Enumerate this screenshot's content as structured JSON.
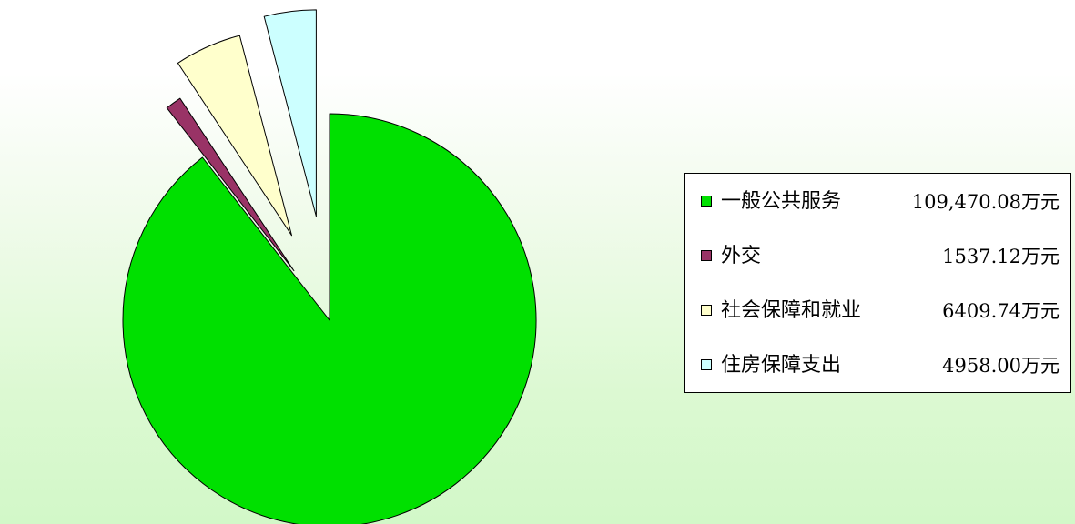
{
  "chart_data": {
    "type": "pie",
    "legend_position": "right",
    "slices": [
      {
        "label": "一般公共服务",
        "value": 109470.08,
        "value_label": "109,470.08万元",
        "color": "#00e000"
      },
      {
        "label": "外交",
        "value": 1537.12,
        "value_label": "1537.12万元",
        "color": "#993366"
      },
      {
        "label": "社会保障和就业",
        "value": 6409.74,
        "value_label": "6409.74万元",
        "color": "#ffffcc"
      },
      {
        "label": "住房保障支出",
        "value": 4958.0,
        "value_label": "4958.00万元",
        "color": "#ccffff"
      }
    ]
  }
}
